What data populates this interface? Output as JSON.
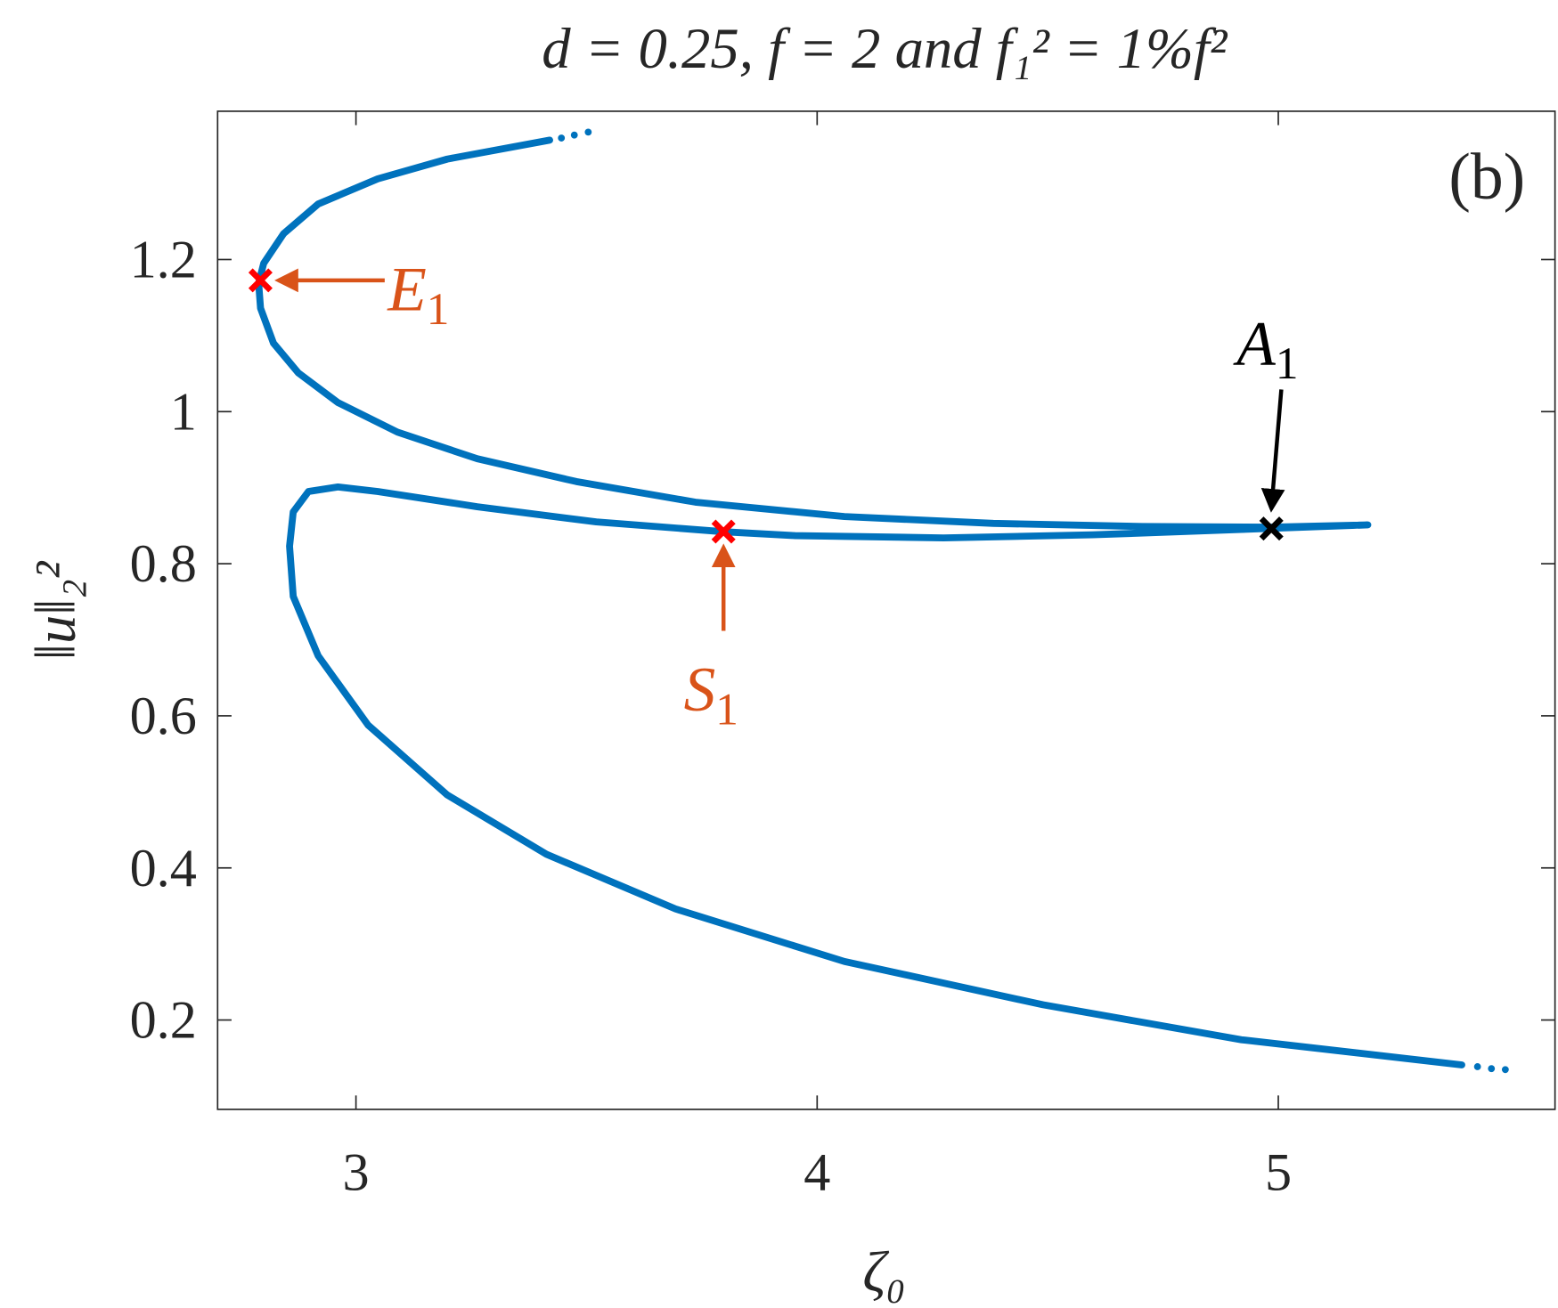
{
  "chart_data": {
    "type": "line",
    "title": "d = 0.25, f = 2 and f₁² = 1%f²",
    "xlabel": "ζ₀",
    "ylabel": "‖u‖₂²",
    "panel_label": "(b)",
    "xlim": [
      2.7,
      5.6
    ],
    "ylim": [
      0.0825,
      1.395
    ],
    "xticks": [
      3,
      4,
      5
    ],
    "yticks": [
      0.2,
      0.4,
      0.6,
      0.8,
      1,
      1.2
    ],
    "x": [
      3.42,
      3.198,
      3.047,
      2.918,
      2.843,
      2.8,
      2.789,
      2.793,
      2.821,
      2.875,
      2.961,
      3.09,
      3.263,
      3.478,
      3.736,
      4.059,
      4.382,
      4.705,
      4.985,
      5.194,
      4.92,
      4.597,
      4.274,
      3.952,
      3.797,
      3.521,
      3.263,
      3.047,
      2.961,
      2.897,
      2.864,
      2.856,
      2.864,
      2.918,
      3.026,
      3.198,
      3.413,
      3.693,
      4.059,
      4.49,
      4.92,
      5.398
    ],
    "series": [
      {
        "color": "#0072bd",
        "values": [
          1.357,
          1.332,
          1.306,
          1.273,
          1.234,
          1.195,
          1.169,
          1.136,
          1.09,
          1.051,
          1.012,
          0.973,
          0.938,
          0.908,
          0.881,
          0.862,
          0.853,
          0.849,
          0.848,
          0.851,
          0.845,
          0.838,
          0.834,
          0.837,
          0.842,
          0.855,
          0.875,
          0.895,
          0.901,
          0.895,
          0.868,
          0.823,
          0.757,
          0.679,
          0.588,
          0.496,
          0.418,
          0.346,
          0.277,
          0.22,
          0.174,
          0.141
        ]
      }
    ],
    "markers": [
      {
        "name": "E",
        "subscript": "1",
        "x": 2.793,
        "y": 1.1726,
        "color": "#ff0000",
        "label_color": "#d95319"
      },
      {
        "name": "S",
        "subscript": "1",
        "x": 3.797,
        "y": 0.8423,
        "color": "#ff0000",
        "label_color": "#d95319"
      },
      {
        "name": "A",
        "subscript": "1",
        "x": 4.985,
        "y": 0.8462,
        "color": "#000000",
        "label_color": "#000000"
      }
    ]
  }
}
